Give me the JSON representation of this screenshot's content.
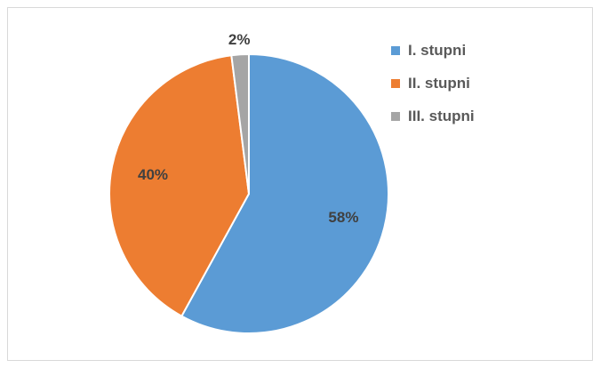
{
  "chart_data": {
    "type": "pie",
    "title": "",
    "categories": [
      "I. stupni",
      "II. stupni",
      "III. stupni"
    ],
    "values": [
      58,
      40,
      2
    ],
    "labels": [
      "58%",
      "40%",
      "2%"
    ],
    "colors": [
      "#5b9bd5",
      "#ed7d31",
      "#a5a5a5"
    ],
    "legend": "right",
    "start_angle_deg": 0,
    "direction": "clockwise"
  }
}
